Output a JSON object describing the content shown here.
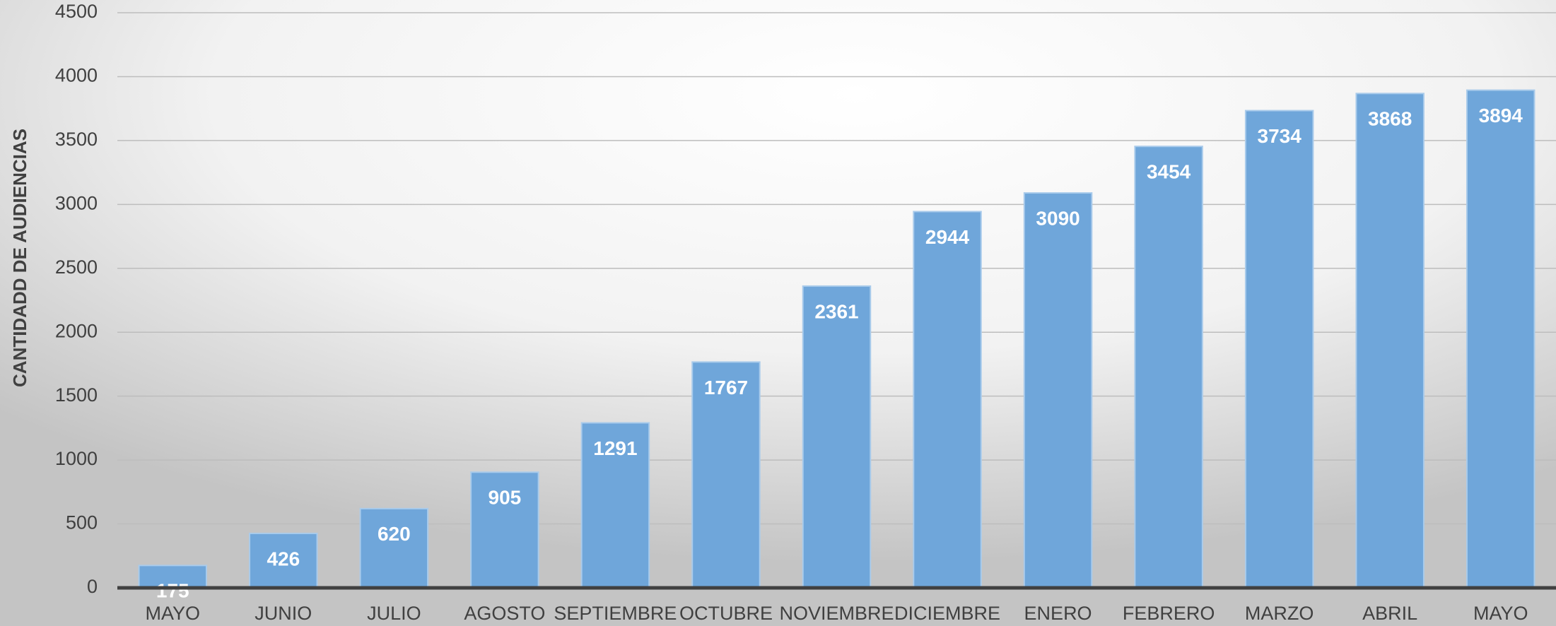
{
  "chart_data": {
    "type": "bar",
    "y_label": "CANTIDADD DE AUDIENCIAS",
    "categories": [
      "MAYO",
      "JUNIO",
      "JULIO",
      "AGOSTO",
      "SEPTIEMBRE",
      "OCTUBRE",
      "NOVIEMBRE",
      "DICIEMBRE",
      "ENERO",
      "FEBRERO",
      "MARZO",
      "ABRIL",
      "MAYO"
    ],
    "values": [
      175,
      426,
      620,
      905,
      1291,
      1767,
      2361,
      2944,
      3090,
      3454,
      3734,
      3868,
      3894
    ],
    "color": "#6fa6da",
    "ylim": [
      0,
      4500
    ],
    "yticks": [
      0,
      500,
      1000,
      1500,
      2000,
      2500,
      3000,
      3500,
      4000,
      4500
    ],
    "grid": true
  }
}
